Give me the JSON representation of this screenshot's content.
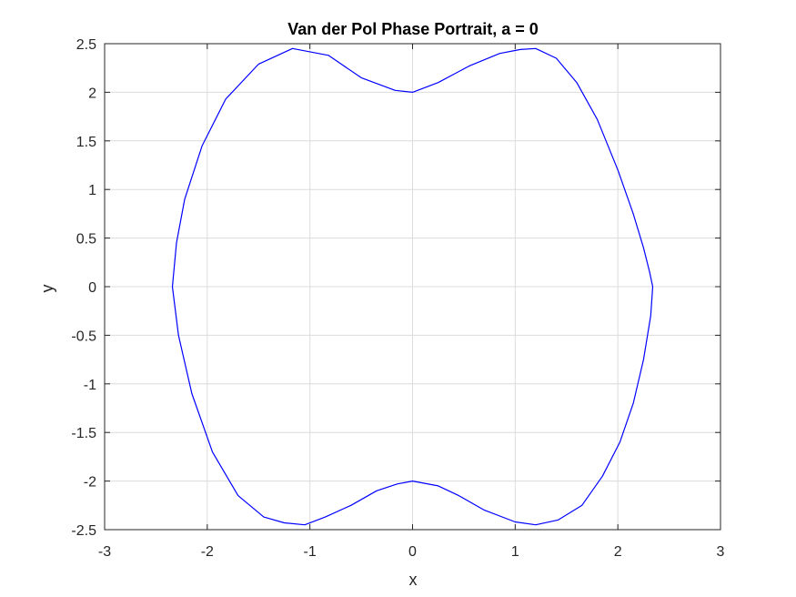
{
  "chart_data": {
    "type": "line",
    "title": "Van der Pol Phase Portrait, a = 0",
    "xlabel": "x",
    "ylabel": "y",
    "xlim": [
      -3,
      3
    ],
    "ylim": [
      -2.5,
      2.5
    ],
    "grid": true,
    "xticks": [
      -3,
      -2,
      -1,
      0,
      1,
      2,
      3
    ],
    "xtick_labels": [
      "-3",
      "-2",
      "-1",
      "0",
      "1",
      "2",
      "3"
    ],
    "yticks": [
      -2.5,
      -2,
      -1.5,
      -1,
      -0.5,
      0,
      0.5,
      1,
      1.5,
      2,
      2.5
    ],
    "ytick_labels": [
      "-2.5",
      "-2",
      "-1.5",
      "-1",
      "-0.5",
      "0",
      "0.5",
      "1",
      "1.5",
      "2",
      "2.5"
    ],
    "line_color": "#0000ff",
    "series": [
      {
        "x": [
          0.0,
          0.25,
          0.55,
          0.85,
          1.05,
          1.2,
          1.4,
          1.6,
          1.8,
          2.0,
          2.15,
          2.25,
          2.31,
          2.34,
          2.32,
          2.25,
          2.15,
          2.02,
          1.85,
          1.65,
          1.42,
          1.2,
          1.0,
          0.7,
          0.45,
          0.25,
          0.0,
          -0.15,
          -0.35,
          -0.6,
          -0.85,
          -1.05,
          -1.25,
          -1.45,
          -1.7,
          -1.95,
          -2.15,
          -2.28,
          -2.34,
          -2.3,
          -2.22,
          -2.05,
          -1.82,
          -1.5,
          -1.17,
          -0.82,
          -0.5,
          -0.17,
          0.0
        ],
        "y": [
          2.0,
          2.1,
          2.27,
          2.4,
          2.44,
          2.45,
          2.35,
          2.1,
          1.72,
          1.2,
          0.75,
          0.4,
          0.15,
          0.0,
          -0.3,
          -0.75,
          -1.2,
          -1.6,
          -1.95,
          -2.25,
          -2.4,
          -2.45,
          -2.42,
          -2.3,
          -2.15,
          -2.05,
          -2.0,
          -2.03,
          -2.1,
          -2.25,
          -2.37,
          -2.45,
          -2.43,
          -2.37,
          -2.15,
          -1.7,
          -1.1,
          -0.5,
          0.0,
          0.45,
          0.9,
          1.45,
          1.93,
          2.29,
          2.45,
          2.38,
          2.15,
          2.02,
          2.0
        ]
      }
    ]
  }
}
